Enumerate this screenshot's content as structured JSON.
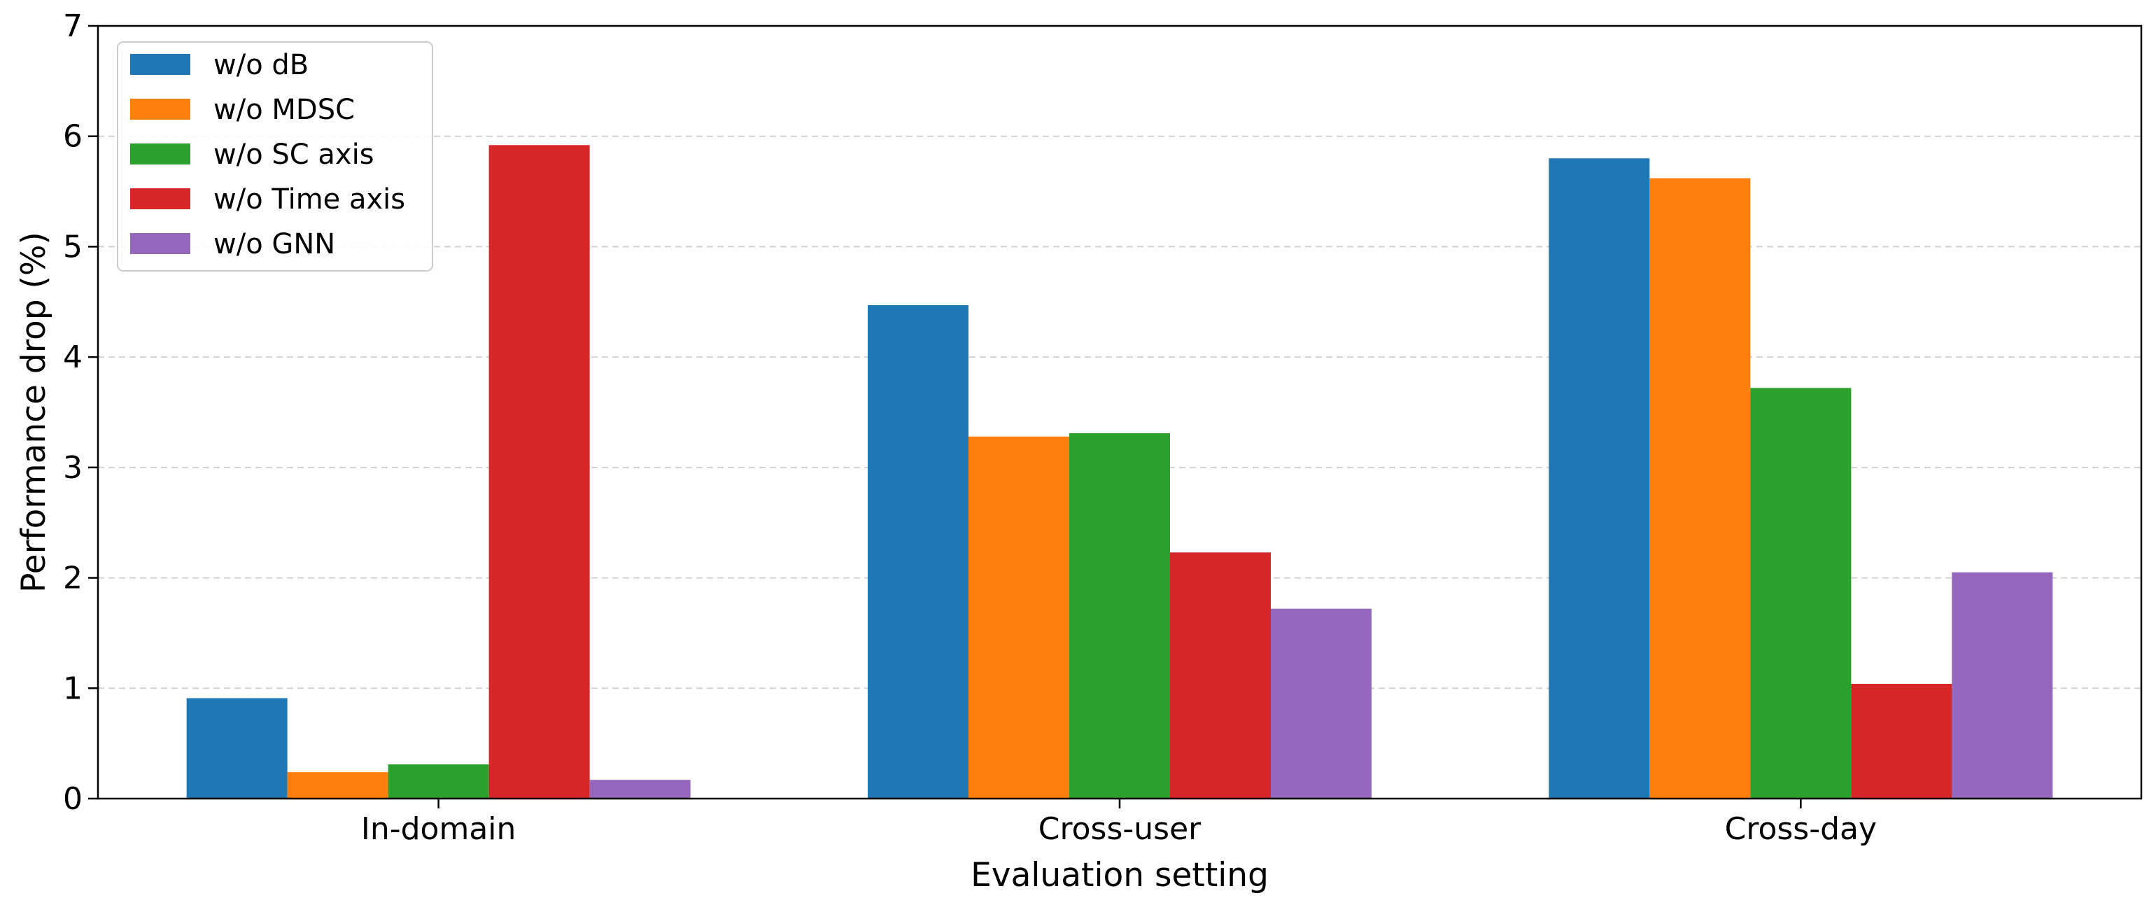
{
  "chart_data": {
    "type": "bar",
    "categories": [
      "In-domain",
      "Cross-user",
      "Cross-day"
    ],
    "series": [
      {
        "name": "w/o dB",
        "color": "#1f77b4",
        "values": [
          0.91,
          4.47,
          5.8
        ]
      },
      {
        "name": "w/o MDSC",
        "color": "#ff7f0e",
        "values": [
          0.24,
          3.28,
          5.62
        ]
      },
      {
        "name": "w/o SC axis",
        "color": "#2ca02c",
        "values": [
          0.31,
          3.31,
          3.72
        ]
      },
      {
        "name": "w/o Time axis",
        "color": "#d62728",
        "values": [
          5.92,
          2.23,
          1.04
        ]
      },
      {
        "name": "w/o GNN",
        "color": "#9467bd",
        "values": [
          0.17,
          1.72,
          2.05
        ]
      }
    ],
    "title": "",
    "xlabel": "Evaluation setting",
    "ylabel": "Performance drop (%)",
    "ylim": [
      0,
      7
    ],
    "yticks": [
      0,
      1,
      2,
      3,
      4,
      5,
      6,
      7
    ],
    "grid": "y-dashed",
    "legend_position": "top-left"
  }
}
